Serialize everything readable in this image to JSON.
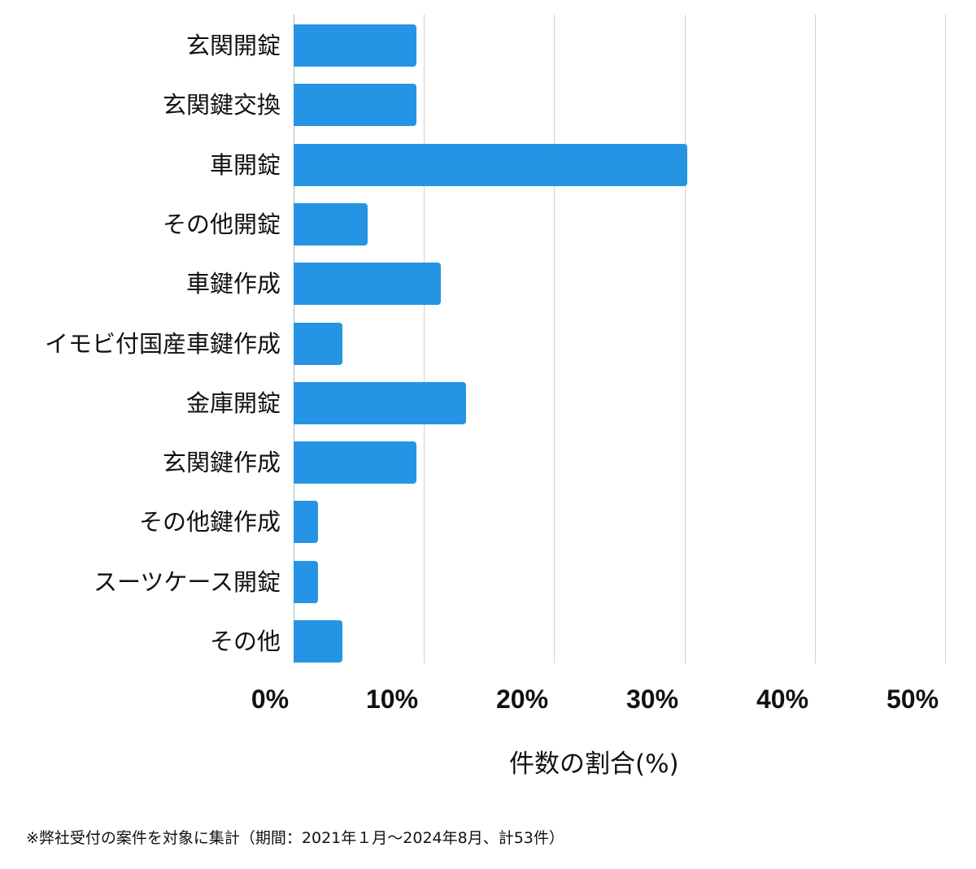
{
  "chart_data": {
    "type": "bar",
    "orientation": "horizontal",
    "title": "",
    "xlabel": "件数の割合(%)",
    "ylabel": "",
    "xlim": [
      0,
      50
    ],
    "grid": true,
    "legend": null,
    "bar_color": "#2694e4",
    "categories": [
      "玄関開錠",
      "玄関鍵交換",
      "車開錠",
      "その他開錠",
      "車鍵作成",
      "イモビ付国産車鍵作成",
      "金庫開錠",
      "玄関鍵作成",
      "その他鍵作成",
      "スーツケース開錠",
      "その他"
    ],
    "values": [
      9.43,
      9.43,
      30.19,
      5.66,
      11.32,
      3.77,
      13.21,
      9.43,
      1.89,
      1.89,
      3.77
    ],
    "x_ticks": [
      "0%",
      "10%",
      "20%",
      "30%",
      "40%",
      "50%"
    ],
    "annotations": [
      "※弊社受付の案件を対象に集計（期間：2021年１月～2024年8月、計53件）"
    ]
  },
  "axis": {
    "x_label": "件数の割合(%)",
    "ticks": [
      "0%",
      "10%",
      "20%",
      "30%",
      "40%",
      "50%"
    ]
  },
  "rows": [
    {
      "label": "玄関開錠",
      "value": 9.43
    },
    {
      "label": "玄関鍵交換",
      "value": 9.43
    },
    {
      "label": "車開錠",
      "value": 30.19
    },
    {
      "label": "その他開錠",
      "value": 5.66
    },
    {
      "label": "車鍵作成",
      "value": 11.32
    },
    {
      "label": "イモビ付国産車鍵作成",
      "value": 3.77
    },
    {
      "label": "金庫開錠",
      "value": 13.21
    },
    {
      "label": "玄関鍵作成",
      "value": 9.43
    },
    {
      "label": "その他鍵作成",
      "value": 1.89
    },
    {
      "label": "スーツケース開錠",
      "value": 1.89
    },
    {
      "label": "その他",
      "value": 3.77
    }
  ],
  "footnote": "※弊社受付の案件を対象に集計（期間：2021年１月～2024年8月、計53件）"
}
